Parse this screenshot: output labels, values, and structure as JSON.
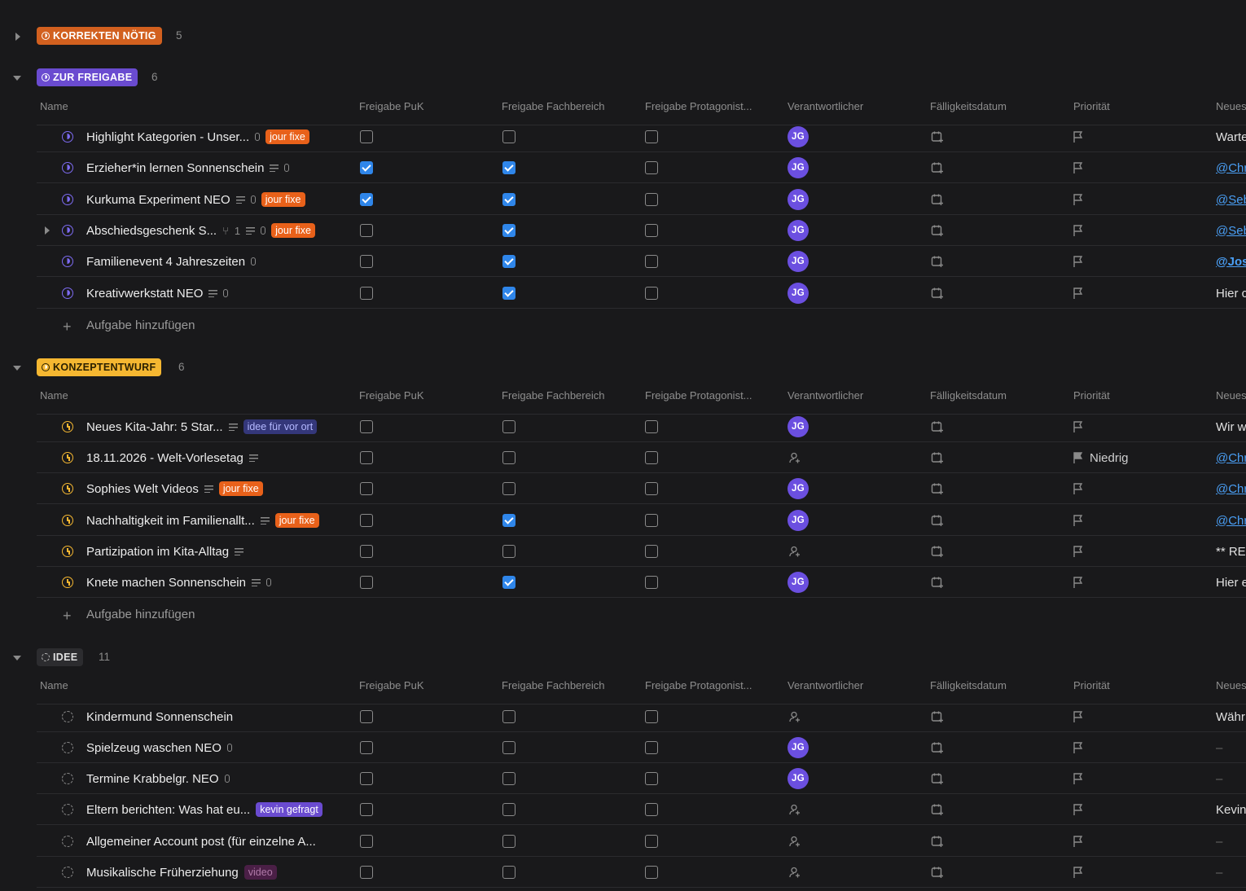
{
  "columns": {
    "name": "Name",
    "freigabe_puk": "Freigabe PuK",
    "freigabe_fachbereich": "Freigabe Fachbereich",
    "freigabe_protagonist": "Freigabe Protagonist...",
    "verantwortlicher": "Verantwortlicher",
    "faelligkeitsdatum": "Fälligkeitsdatum",
    "prioritaet": "Priorität",
    "neuestes": "Neues"
  },
  "add_task_label": "Aufgabe hinzufügen",
  "avatar_initials": "JG",
  "colors": {
    "korrekten": "#d2601f",
    "freigabe": "#6a4bd0",
    "konzept": "#f5b731",
    "idee": "#2c2c2f",
    "checkbox_checked": "#2f86ea",
    "avatar": "#6b4fe0"
  },
  "groups": [
    {
      "label": "KORREKTEN NÖTIG",
      "count": "5",
      "expanded": false
    },
    {
      "label": "ZUR FREIGABE",
      "count": "6",
      "expanded": true
    },
    {
      "label": "KONZEPTENTWURF",
      "count": "6",
      "expanded": true
    },
    {
      "label": "IDEE",
      "count": "11",
      "expanded": true
    }
  ],
  "freigabe_rows": [
    {
      "name": "Highlight Kategorien - Unser...",
      "tag": "jour fixe",
      "puk": false,
      "fach": false,
      "prot": false,
      "assignee": "JG",
      "priority": "",
      "newest": "Warte"
    },
    {
      "name": "Erzieher*in lernen Sonnenschein",
      "tag": "",
      "puk": true,
      "fach": true,
      "prot": false,
      "assignee": "JG",
      "priority": "",
      "newest": "@Chr"
    },
    {
      "name": "Kurkuma Experiment NEO",
      "tag": "jour fixe",
      "puk": true,
      "fach": true,
      "prot": false,
      "assignee": "JG",
      "priority": "",
      "newest": "@Seb"
    },
    {
      "name": "Abschiedsgeschenk S...",
      "subtasks": "1",
      "tag": "jour fixe",
      "puk": false,
      "fach": true,
      "prot": false,
      "assignee": "JG",
      "priority": "",
      "newest": "@Seb"
    },
    {
      "name": "Familienevent 4 Jahreszeiten",
      "tag": "",
      "puk": false,
      "fach": true,
      "prot": false,
      "assignee": "JG",
      "priority": "",
      "newest": "@Jos"
    },
    {
      "name": "Kreativwerkstatt NEO",
      "tag": "",
      "puk": false,
      "fach": true,
      "prot": false,
      "assignee": "JG",
      "priority": "",
      "newest": "Hier c"
    }
  ],
  "konzept_rows": [
    {
      "name": "Neues Kita-Jahr: 5 Star...",
      "tag": "idee für vor ort",
      "newest": "Wir w"
    },
    {
      "name": "18.11.2026 - Welt-Vorlesetag",
      "tag": "",
      "priority": "Niedrig",
      "newest": "@Chr"
    },
    {
      "name": "Sophies Welt Videos",
      "tag": "jour fixe",
      "newest": "@Chr"
    },
    {
      "name": "Nachhaltigkeit im Familienallt...",
      "tag": "jour fixe",
      "newest": "@Chr"
    },
    {
      "name": "Partizipation im Kita-Alltag",
      "tag": "",
      "newest": "** RE"
    },
    {
      "name": "Knete machen Sonnenschein",
      "tag": "",
      "newest": "Hier e"
    }
  ],
  "idee_rows": [
    {
      "name": "Kindermund Sonnenschein",
      "tag": "",
      "newest": "Währ"
    },
    {
      "name": "Spielzeug waschen NEO",
      "tag": "",
      "newest": "–"
    },
    {
      "name": "Termine Krabbelgr. NEO",
      "tag": "",
      "newest": "–"
    },
    {
      "name": "Eltern berichten: Was hat eu...",
      "tag": "kevin gefragt",
      "newest": "Kevin"
    },
    {
      "name": "Allgemeiner Account post (für einzelne A...",
      "tag": "",
      "newest": "–"
    },
    {
      "name": "Musikalische Früherziehung",
      "tag": "video",
      "newest": "–"
    }
  ]
}
